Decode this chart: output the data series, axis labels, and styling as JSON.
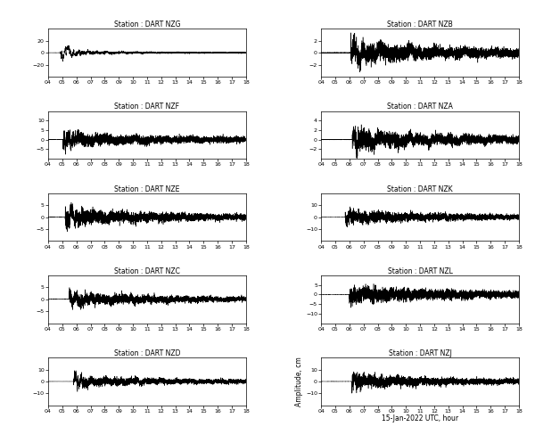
{
  "stations_left": [
    {
      "name": "DART NZG",
      "ylim": [
        -40,
        40
      ],
      "yticks": [
        -20,
        0,
        20
      ]
    },
    {
      "name": "DART NZF",
      "ylim": [
        -10,
        15
      ],
      "yticks": [
        -5,
        0,
        5,
        10
      ]
    },
    {
      "name": "DART NZE",
      "ylim": [
        -10,
        10
      ],
      "yticks": [
        -5,
        0,
        5
      ]
    },
    {
      "name": "DART NZC",
      "ylim": [
        -10,
        10
      ],
      "yticks": [
        -5,
        0,
        5
      ]
    },
    {
      "name": "DART NZD",
      "ylim": [
        -20,
        20
      ],
      "yticks": [
        -10,
        0,
        10
      ]
    }
  ],
  "stations_right": [
    {
      "name": "DART NZB",
      "ylim": [
        -4,
        4
      ],
      "yticks": [
        -2,
        0,
        2
      ]
    },
    {
      "name": "DART NZA",
      "ylim": [
        -4,
        6
      ],
      "yticks": [
        -2,
        0,
        2,
        4
      ]
    },
    {
      "name": "DART NZK",
      "ylim": [
        -20,
        20
      ],
      "yticks": [
        -10,
        0,
        10
      ]
    },
    {
      "name": "DART NZL",
      "ylim": [
        -15,
        10
      ],
      "yticks": [
        -10,
        -5,
        0,
        5
      ]
    },
    {
      "name": "DART NZJ",
      "ylim": [
        -20,
        20
      ],
      "yticks": [
        -10,
        0,
        10
      ]
    }
  ],
  "xlim": [
    4,
    18
  ],
  "xticks": [
    4,
    5,
    6,
    7,
    8,
    9,
    10,
    11,
    12,
    13,
    14,
    15,
    16,
    17,
    18
  ],
  "xticklabels": [
    "04",
    "05",
    "06",
    "07",
    "08",
    "09",
    "10",
    "11",
    "12",
    "13",
    "14",
    "15",
    "16",
    "17",
    "18"
  ],
  "xlabel_bottom": "15-Jan-2022 UTC, hour",
  "ylabel_right_bottom": "Amplitude, cm",
  "line_color": "#000000",
  "background_color": "#ffffff",
  "waveform_seeds": {
    "NZG": 101,
    "NZF": 102,
    "NZE": 103,
    "NZC": 104,
    "NZD": 105,
    "NZB": 201,
    "NZA": 202,
    "NZK": 203,
    "NZL": 204,
    "NZJ": 205
  },
  "waveform_params": {
    "NZG": {
      "onset": 4.87,
      "peak": 28.0,
      "decay": 1.2,
      "noise_scale": 1.2,
      "sustained": 1.8,
      "pre_noise": 0.5
    },
    "NZF": {
      "onset": 5.05,
      "peak": 11.0,
      "decay": 0.8,
      "noise_scale": 1.8,
      "sustained": 2.2,
      "pre_noise": 0.3
    },
    "NZE": {
      "onset": 5.2,
      "peak": 7.0,
      "decay": 0.9,
      "noise_scale": 1.5,
      "sustained": 2.0,
      "pre_noise": 0.2
    },
    "NZC": {
      "onset": 5.5,
      "peak": 4.5,
      "decay": 1.0,
      "noise_scale": 1.2,
      "sustained": 1.8,
      "pre_noise": 0.2
    },
    "NZD": {
      "onset": 5.8,
      "peak": 10.0,
      "decay": 0.7,
      "noise_scale": 2.0,
      "sustained": 2.5,
      "pre_noise": 0.2
    },
    "NZB": {
      "onset": 6.1,
      "peak": 2.5,
      "decay": 1.5,
      "noise_scale": 0.8,
      "sustained": 1.2,
      "pre_noise": 0.15
    },
    "NZA": {
      "onset": 6.2,
      "peak": 3.5,
      "decay": 1.2,
      "noise_scale": 0.9,
      "sustained": 1.3,
      "pre_noise": 0.15
    },
    "NZK": {
      "onset": 5.7,
      "peak": 11.0,
      "decay": 0.9,
      "noise_scale": 2.5,
      "sustained": 2.8,
      "pre_noise": 0.3
    },
    "NZL": {
      "onset": 6.0,
      "peak": 9.0,
      "decay": 0.8,
      "noise_scale": 2.0,
      "sustained": 2.2,
      "pre_noise": 0.2
    },
    "NZJ": {
      "onset": 6.15,
      "peak": 13.0,
      "decay": 0.7,
      "noise_scale": 2.5,
      "sustained": 2.8,
      "pre_noise": 0.3
    }
  }
}
